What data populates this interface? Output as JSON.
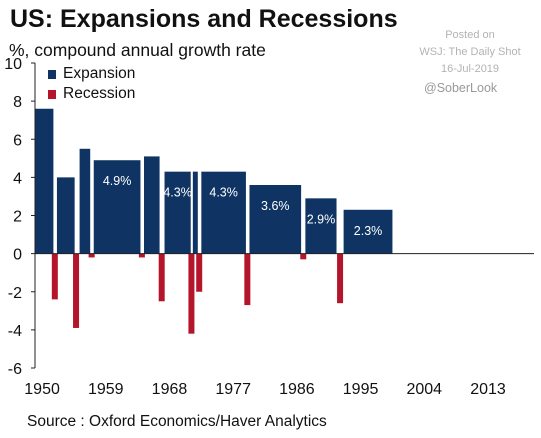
{
  "title": "US: Expansions and Recessions",
  "subtitle": "%, compound annual growth rate",
  "posted": {
    "line1": "Posted on",
    "line2": "WSJ: The Daily Shot",
    "line3": "16-Jul-2019"
  },
  "handle": "@SoberLook",
  "source": "Source : Oxford Economics/Haver Analytics",
  "colors": {
    "expansion": "#0f3463",
    "recession": "#b5152b"
  },
  "chart_data": {
    "type": "bar",
    "legend": {
      "placement": "top-left",
      "entries": [
        {
          "key": "expansion",
          "label": "Expansion"
        },
        {
          "key": "recession",
          "label": "Recession"
        }
      ]
    },
    "x_ticks": [
      "1950",
      "1959",
      "1968",
      "1977",
      "1986",
      "1995",
      "2004",
      "2013"
    ],
    "xlim": [
      1949.0,
      2019.5
    ],
    "ylim": [
      -6,
      10
    ],
    "y_ticks": [
      "10",
      "8",
      "6",
      "4",
      "2",
      "0",
      "-2",
      "-4",
      "-6"
    ],
    "grid": false,
    "series": [
      {
        "name": "Expansion",
        "bars": [
          {
            "start": 1949.0,
            "end": 1951.6,
            "value": 7.6,
            "label": ""
          },
          {
            "start": 1952.1,
            "end": 1954.6,
            "value": 4.0,
            "label": ""
          },
          {
            "start": 1955.3,
            "end": 1956.8,
            "value": 5.5,
            "label": ""
          },
          {
            "start": 1957.3,
            "end": 1963.9,
            "value": 4.9,
            "label": "4.9%"
          },
          {
            "start": 1964.4,
            "end": 1966.6,
            "value": 5.1,
            "label": ""
          },
          {
            "start": 1967.3,
            "end": 1971.0,
            "value": 4.3,
            "label": "4.3%"
          },
          {
            "start": 1971.3,
            "end": 1972.0,
            "value": 4.3,
            "label": ""
          },
          {
            "start": 1972.5,
            "end": 1978.8,
            "value": 4.3,
            "label": "4.3%"
          },
          {
            "start": 1979.3,
            "end": 1986.6,
            "value": 3.6,
            "label": "3.6%"
          },
          {
            "start": 1987.2,
            "end": 1991.6,
            "value": 2.9,
            "label": "2.9%"
          },
          {
            "start": 1992.6,
            "end": 1999.5,
            "value": 2.3,
            "label": "2.3%"
          }
        ]
      },
      {
        "name": "Recession",
        "bars": [
          {
            "center": 1951.8,
            "value": -2.4
          },
          {
            "center": 1954.8,
            "value": -3.9
          },
          {
            "center": 1957.0,
            "value": -0.2
          },
          {
            "center": 1964.1,
            "value": -0.2
          },
          {
            "center": 1966.9,
            "value": -2.5
          },
          {
            "center": 1971.1,
            "value": -4.2
          },
          {
            "center": 1972.2,
            "value": -2.0
          },
          {
            "center": 1979.0,
            "value": -2.7
          },
          {
            "center": 1986.9,
            "value": -0.3
          },
          {
            "center": 1992.1,
            "value": -2.6
          }
        ]
      }
    ]
  }
}
